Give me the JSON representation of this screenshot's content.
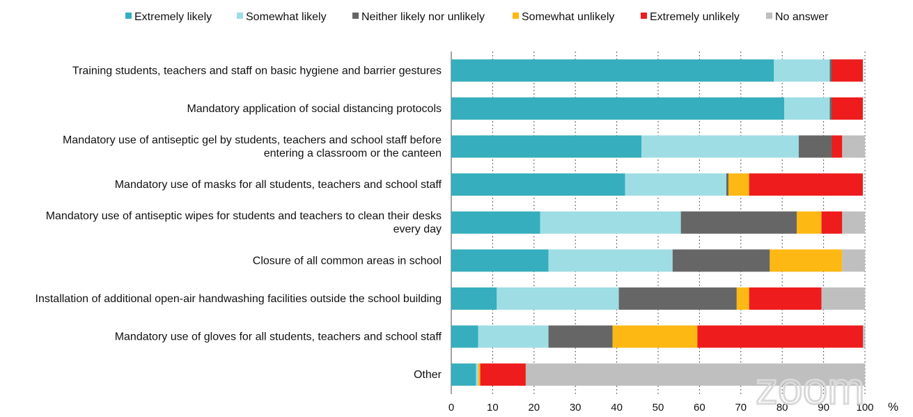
{
  "chart_data": {
    "type": "bar",
    "orientation": "horizontal",
    "stacked": true,
    "legend_position": "top",
    "grid": true,
    "x_unit": "%",
    "xlim": [
      0,
      100
    ],
    "x_ticks": [
      0,
      10,
      20,
      30,
      40,
      50,
      60,
      70,
      80,
      90,
      100
    ],
    "categories": [
      [
        "Training students, teachers and staff on basic hygiene and barrier gestures"
      ],
      [
        "Mandatory application of social distancing protocols"
      ],
      [
        "Mandatory use of antiseptic gel by students, teachers and school staff before",
        "entering a classroom or the canteen"
      ],
      [
        "Mandatory use of masks for all students, teachers and school staff"
      ],
      [
        "Mandatory use of antiseptic wipes for students and teachers to clean their desks",
        "every day"
      ],
      [
        "Closure of all common areas in school"
      ],
      [
        "Installation of additional open-air handwashing facilities outside the school building"
      ],
      [
        "Mandatory use of gloves for all students, teachers and school staff"
      ],
      [
        "Other"
      ]
    ],
    "series": [
      {
        "name": "Extremely likely",
        "color": "#36aebd",
        "values": [
          78,
          80.5,
          46,
          42,
          21.5,
          23.5,
          11,
          6.5,
          6
        ]
      },
      {
        "name": "Somewhat likely",
        "color": "#9edde4",
        "values": [
          13.5,
          11,
          38,
          24.5,
          34,
          30,
          29.5,
          17,
          0.5
        ]
      },
      {
        "name": "Neither likely nor unlikely",
        "color": "#666666",
        "values": [
          0.5,
          0.5,
          8,
          0.5,
          28,
          23.5,
          28.5,
          15.5,
          0
        ]
      },
      {
        "name": "Somewhat unlikely",
        "color": "#fdb813",
        "values": [
          0,
          0,
          0,
          5,
          6,
          17.5,
          3,
          20.5,
          0.5
        ]
      },
      {
        "name": "Extremely unlikely",
        "color": "#ee1c1c",
        "values": [
          7.5,
          7.5,
          2.5,
          27.5,
          5,
          0,
          17.5,
          40,
          11
        ]
      },
      {
        "name": "No answer",
        "color": "#bfbfbf",
        "values": [
          0,
          0,
          5.5,
          0,
          5.5,
          5.5,
          10.5,
          0.5,
          82
        ]
      }
    ]
  },
  "watermark": {
    "text": "zoom"
  }
}
